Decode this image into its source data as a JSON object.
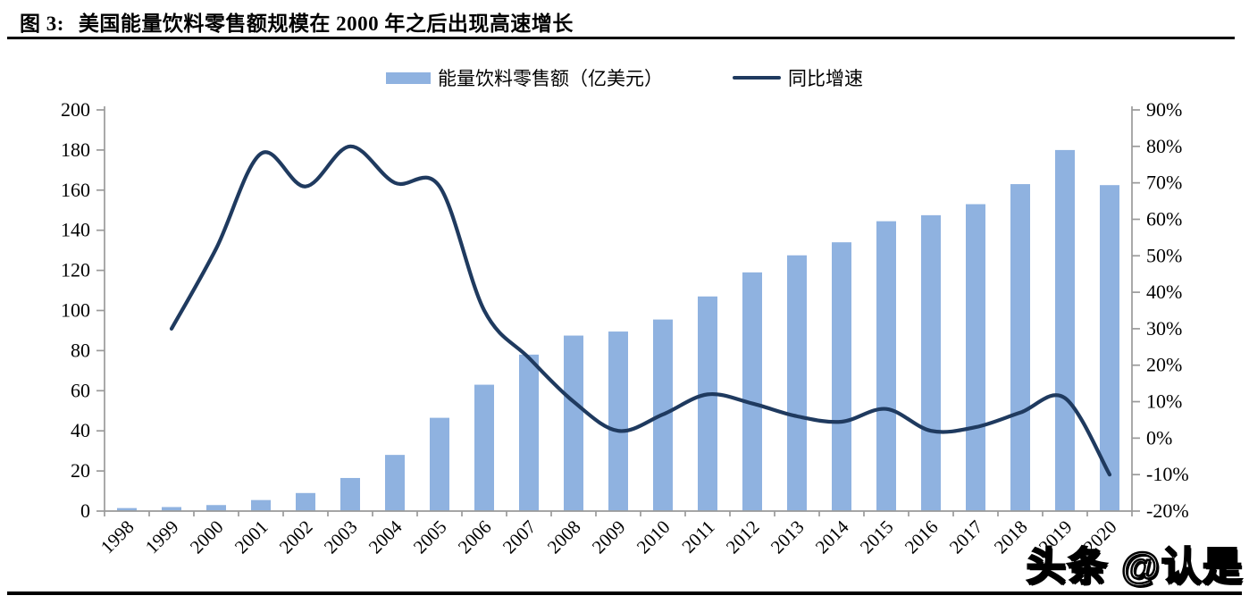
{
  "figure": {
    "title_prefix": "图 3:",
    "title": "美国能量饮料零售额规模在 2000 年之后出现高速增长",
    "watermark": "头条 @认是"
  },
  "chart_data": {
    "type": "bar+line",
    "title": "美国能量饮料零售额规模在 2000 年之后出现高速增长",
    "grid": false,
    "legend_position": "top-center",
    "background_color": "#ffffff",
    "axis_color": "#9a9a9a",
    "categories": [
      "1998",
      "1999",
      "2000",
      "2001",
      "2002",
      "2003",
      "2004",
      "2005",
      "2006",
      "2007",
      "2008",
      "2009",
      "2010",
      "2011",
      "2012",
      "2013",
      "2014",
      "2015",
      "2016",
      "2017",
      "2018",
      "2019",
      "2020"
    ],
    "series": [
      {
        "name": "能量饮料零售额（亿美元）",
        "type": "bar",
        "axis": "left",
        "color": "#8FB2E0",
        "values": [
          1.5,
          2,
          3,
          5.5,
          9,
          16.5,
          28,
          46.5,
          63,
          78,
          87.5,
          89.5,
          95.5,
          107,
          119,
          127.5,
          134,
          144.5,
          147.5,
          153,
          163,
          180,
          162.5
        ]
      },
      {
        "name": "同比增速",
        "type": "line",
        "axis": "right",
        "color": "#1F3A5F",
        "values": [
          null,
          30,
          52,
          78,
          69,
          80,
          70,
          69,
          35,
          22,
          10,
          2,
          6.5,
          12,
          9.5,
          6,
          4.5,
          8,
          2,
          3,
          7,
          11,
          -10
        ]
      }
    ],
    "y_left": {
      "min": 0,
      "max": 200,
      "ticks": [
        0,
        20,
        40,
        60,
        80,
        100,
        120,
        140,
        160,
        180,
        200
      ],
      "suffix": ""
    },
    "y_right": {
      "min": -20,
      "max": 90,
      "ticks": [
        -20,
        -10,
        0,
        10,
        20,
        30,
        40,
        50,
        60,
        70,
        80,
        90
      ],
      "suffix": "%"
    }
  }
}
